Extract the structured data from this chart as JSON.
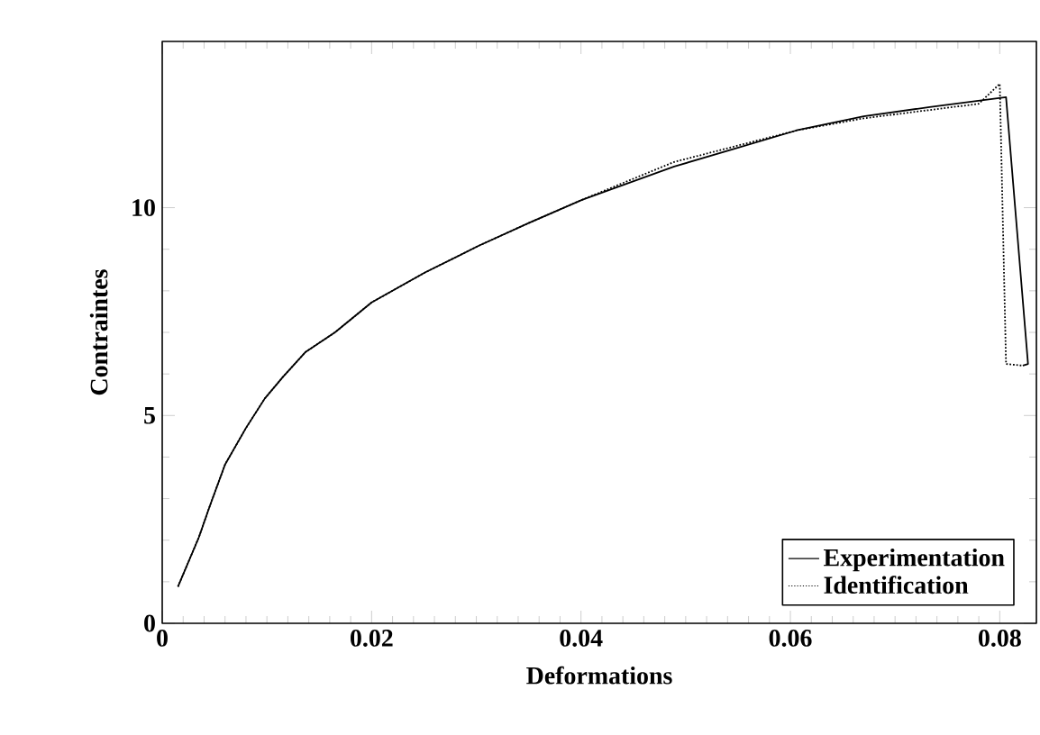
{
  "chart_data": {
    "type": "line",
    "xlabel": "Deformations",
    "ylabel": "Contraintes",
    "xlim": [
      0,
      0.0835
    ],
    "ylim": [
      0,
      14
    ],
    "xticks": [
      0,
      0.02,
      0.04,
      0.06,
      0.08
    ],
    "yticks": [
      0,
      5,
      10
    ],
    "grid": false,
    "legend": "bottom right",
    "marker": "none",
    "series": [
      {
        "name": "Experimentation",
        "color": "#000000",
        "line_style": "solid",
        "x": [
          0.0015,
          0.0035,
          0.0045,
          0.006,
          0.008,
          0.0098,
          0.0115,
          0.0137,
          0.0165,
          0.02,
          0.0251,
          0.0302,
          0.035,
          0.0401,
          0.0489,
          0.0543,
          0.0606,
          0.067,
          0.0733,
          0.0806,
          0.0827,
          0.0822
        ],
        "values": [
          0.88,
          2.07,
          2.79,
          3.82,
          4.7,
          5.41,
          5.92,
          6.53,
          7.0,
          7.72,
          8.44,
          9.08,
          9.63,
          10.19,
          10.99,
          11.39,
          11.86,
          12.2,
          12.42,
          12.66,
          6.24,
          6.2
        ]
      },
      {
        "name": "Identification",
        "color": "#000000",
        "line_style": "dotted",
        "x": [
          0.0015,
          0.0035,
          0.0045,
          0.006,
          0.008,
          0.0098,
          0.0115,
          0.0137,
          0.0165,
          0.02,
          0.0251,
          0.0302,
          0.035,
          0.0401,
          0.0489,
          0.0543,
          0.0606,
          0.067,
          0.0733,
          0.078,
          0.08,
          0.0806,
          0.0822
        ],
        "values": [
          0.88,
          2.07,
          2.79,
          3.82,
          4.7,
          5.41,
          5.92,
          6.53,
          7.0,
          7.72,
          8.44,
          9.08,
          9.63,
          10.19,
          11.1,
          11.45,
          11.86,
          12.15,
          12.35,
          12.5,
          12.98,
          6.24,
          6.2
        ]
      }
    ]
  }
}
